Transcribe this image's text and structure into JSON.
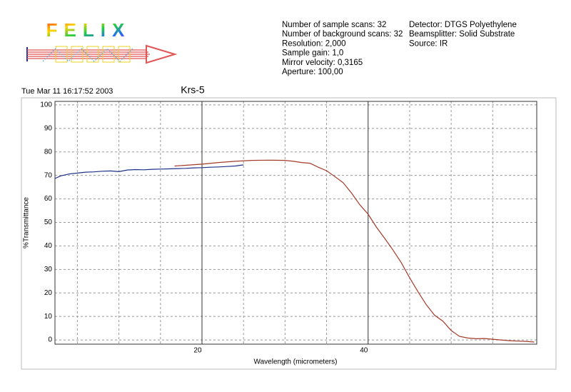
{
  "header": {
    "logo": "FELIX",
    "info_left": [
      "Number of sample scans:  32",
      "Number of background scans:  32",
      "Resolution:  2,000",
      "Sample gain:  1,0",
      "Mirror velocity:  0,3165",
      "Aperture:  100,00"
    ],
    "info_right": [
      "Detector:  DTGS Polyethylene",
      "Beamsplitter:  Solid Substrate",
      "Source:  IR"
    ],
    "timestamp": "Tue Mar 11 16:17:52 2003"
  },
  "chart_data": {
    "type": "line",
    "title": "Krs-5",
    "xlabel": "Wavelength (micrometers)",
    "ylabel": "%Transmittance",
    "xlim": [
      2.3,
      60.3
    ],
    "ylim": [
      -1.8,
      101.5
    ],
    "xticks": [
      20,
      40
    ],
    "x_minor_grid": [
      5,
      10,
      15,
      25,
      30,
      35,
      45,
      50,
      55
    ],
    "yticks": [
      0,
      10,
      20,
      30,
      40,
      50,
      60,
      70,
      80,
      90,
      100
    ],
    "grid": true,
    "series": [
      {
        "color": "#1f2f8a",
        "x": [
          2.3,
          3,
          4,
          5,
          6,
          7,
          8,
          9,
          10,
          11,
          12,
          13,
          14,
          15,
          16,
          17,
          18,
          19,
          20,
          21,
          22,
          23,
          24,
          25
        ],
        "values": [
          68.7,
          69.8,
          70.6,
          71,
          71.4,
          71.5,
          71.8,
          71.9,
          71.6,
          72.3,
          72.5,
          72.4,
          72.6,
          72.7,
          72.8,
          72.9,
          73,
          73.2,
          73.3,
          73.5,
          73.6,
          73.8,
          74,
          74.5
        ]
      },
      {
        "color": "#a33a2a",
        "x": [
          16.7,
          18,
          20,
          22,
          24,
          26,
          28,
          30,
          31,
          32,
          33,
          34,
          35,
          36,
          37,
          38,
          39,
          40,
          41,
          42,
          43,
          44,
          45,
          46,
          47,
          48,
          49,
          50,
          51,
          52,
          53,
          54,
          55,
          56,
          57,
          58,
          59,
          60
        ],
        "values": [
          74,
          74.3,
          74.8,
          75.5,
          76,
          76.4,
          76.5,
          76.4,
          76,
          75.5,
          75.2,
          73.5,
          72,
          69.5,
          66.9,
          62.5,
          57.5,
          53.5,
          48,
          43.2,
          38.2,
          32.8,
          26.5,
          20.5,
          15,
          10.5,
          8,
          4,
          1.5,
          0.8,
          0.5,
          0.6,
          0.3,
          0,
          -0.3,
          -0.5,
          -0.6,
          -0.9
        ]
      }
    ]
  }
}
